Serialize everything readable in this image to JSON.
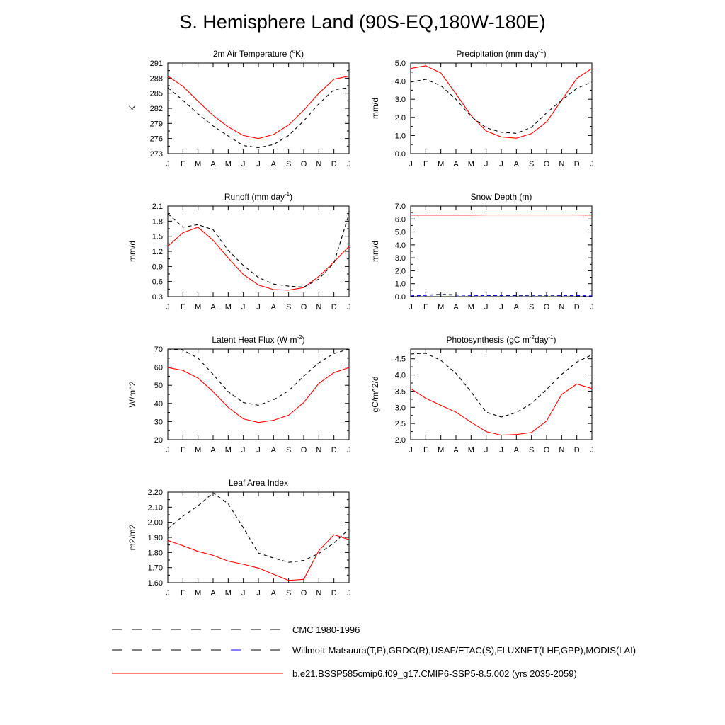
{
  "page": {
    "title": "S. Hemisphere Land (90S-EQ,180W-180E)"
  },
  "legend": [
    {
      "label": "CMC 1980-1996",
      "style": "dashed",
      "color": "#000000",
      "color2": "#000000"
    },
    {
      "label": "Willmott-Matsuura(T,P),GRDC(R),USAF/ETAC(S),FLUXNET(LHF,GPP),MODIS(LAI)",
      "style": "dashed",
      "color": "#000000",
      "color2": "#0000ff"
    },
    {
      "label": "b.e21.BSSP585cmip6.f09_g17.CMIP6-SSP5-8.5.002 (yrs 2035-2059)",
      "style": "solid",
      "color": "#ff0000"
    }
  ],
  "chart_data": [
    {
      "type": "line",
      "title": "2m Air Temperature (°K)",
      "title_parts": [
        "2m Air Temperature (",
        "o",
        "K)"
      ],
      "ylabel": "K",
      "x": [
        "J",
        "F",
        "M",
        "A",
        "M",
        "J",
        "J",
        "A",
        "S",
        "O",
        "N",
        "D",
        "J"
      ],
      "ylim": [
        273,
        291
      ],
      "yticks": [
        "273",
        "276",
        "279",
        "282",
        "285",
        "288",
        "291"
      ],
      "series": [
        {
          "color": "#ff0000",
          "dash": "solid",
          "values": [
            288.4,
            286.4,
            283.4,
            280.6,
            278.3,
            276.6,
            276.0,
            276.8,
            278.7,
            281.6,
            285.0,
            287.8,
            288.4
          ]
        },
        {
          "color": "#000000",
          "dash": "dashed",
          "values": [
            286.1,
            283.6,
            280.9,
            278.5,
            276.5,
            274.6,
            274.2,
            274.8,
            276.6,
            279.5,
            282.9,
            285.7,
            286.1
          ]
        }
      ]
    },
    {
      "type": "line",
      "title": "Precipitation (mm day-1)",
      "title_parts": [
        "Precipitation (mm day",
        "-1",
        ")"
      ],
      "ylabel": "mm/d",
      "x": [
        "J",
        "F",
        "M",
        "A",
        "M",
        "J",
        "J",
        "A",
        "S",
        "O",
        "N",
        "D",
        "J"
      ],
      "ylim": [
        0,
        5
      ],
      "yticks": [
        "0.0",
        "1.0",
        "2.0",
        "3.0",
        "4.0",
        "5.0"
      ],
      "series": [
        {
          "color": "#ff0000",
          "dash": "solid",
          "values": [
            4.7,
            4.85,
            4.45,
            3.3,
            2.1,
            1.25,
            0.92,
            0.85,
            1.1,
            1.75,
            2.95,
            4.15,
            4.7
          ]
        },
        {
          "color": "#000000",
          "dash": "dashed",
          "values": [
            3.95,
            4.1,
            3.75,
            3.0,
            2.05,
            1.42,
            1.18,
            1.12,
            1.45,
            2.25,
            2.95,
            3.6,
            3.95
          ]
        }
      ]
    },
    {
      "type": "line",
      "title": "Runoff (mm day-1)",
      "title_parts": [
        "Runoff (mm day",
        "-1",
        ")"
      ],
      "ylabel": "mm/d",
      "x": [
        "J",
        "F",
        "M",
        "A",
        "M",
        "J",
        "J",
        "A",
        "S",
        "O",
        "N",
        "D",
        "J"
      ],
      "ylim": [
        0.3,
        2.1
      ],
      "yticks": [
        "0.3",
        "0.6",
        "0.9",
        "1.2",
        "1.5",
        "1.8",
        "2.1"
      ],
      "series": [
        {
          "color": "#ff0000",
          "dash": "solid",
          "values": [
            1.3,
            1.57,
            1.68,
            1.42,
            1.07,
            0.74,
            0.53,
            0.44,
            0.43,
            0.48,
            0.7,
            0.99,
            1.3
          ]
        },
        {
          "color": "#000000",
          "dash": "dashed",
          "values": [
            1.95,
            1.68,
            1.73,
            1.63,
            1.22,
            0.92,
            0.68,
            0.55,
            0.51,
            0.49,
            0.65,
            0.97,
            1.95
          ]
        }
      ]
    },
    {
      "type": "line",
      "title": "Snow Depth (m)",
      "title_parts": [
        "Snow Depth (m)"
      ],
      "ylabel": "mm/d",
      "x": [
        "J",
        "F",
        "M",
        "A",
        "M",
        "J",
        "J",
        "A",
        "S",
        "O",
        "N",
        "D",
        "J"
      ],
      "ylim": [
        0,
        7
      ],
      "yticks": [
        "0.0",
        "1.0",
        "2.0",
        "3.0",
        "4.0",
        "5.0",
        "6.0",
        "7.0"
      ],
      "series": [
        {
          "color": "#ff0000",
          "dash": "solid",
          "values": [
            6.3,
            6.3,
            6.3,
            6.3,
            6.3,
            6.31,
            6.31,
            6.31,
            6.31,
            6.31,
            6.31,
            6.31,
            6.3
          ]
        },
        {
          "color": "#000000",
          "dash": "dashed",
          "values": [
            0.05,
            0.12,
            0.18,
            0.14,
            0.1,
            0.09,
            0.08,
            0.09,
            0.1,
            0.1,
            0.09,
            0.07,
            0.05
          ]
        },
        {
          "color": "#0000ff",
          "dash": "dashed",
          "values": [
            0.06,
            0.1,
            0.15,
            0.12,
            0.1,
            0.09,
            0.1,
            0.11,
            0.12,
            0.12,
            0.1,
            0.08,
            0.06
          ]
        }
      ]
    },
    {
      "type": "line",
      "title": "Latent Heat Flux (W m-2)",
      "title_parts": [
        "Latent Heat Flux (W m",
        "-2",
        ")"
      ],
      "ylabel": "W/m^2",
      "x": [
        "J",
        "F",
        "M",
        "A",
        "M",
        "J",
        "J",
        "A",
        "S",
        "O",
        "N",
        "D",
        "J"
      ],
      "ylim": [
        20,
        70
      ],
      "yticks": [
        "20",
        "30",
        "40",
        "50",
        "60",
        "70"
      ],
      "series": [
        {
          "color": "#ff0000",
          "dash": "solid",
          "values": [
            59.8,
            58.2,
            54.0,
            46.5,
            37.8,
            31.5,
            29.5,
            30.7,
            33.5,
            40.5,
            51.0,
            57.0,
            59.8
          ]
        },
        {
          "color": "#000000",
          "dash": "dashed",
          "values": [
            70.0,
            69.5,
            65.0,
            56.0,
            46.5,
            40.5,
            39.0,
            42.0,
            47.0,
            55.0,
            62.5,
            67.5,
            70.0
          ]
        }
      ]
    },
    {
      "type": "line",
      "title": "Photosynthesis (gC m-2day-1)",
      "title_parts": [
        "Photosynthesis (gC m",
        "-2",
        "day",
        "-1",
        ")"
      ],
      "ylabel": "gC/m^2/d",
      "x": [
        "J",
        "F",
        "M",
        "A",
        "M",
        "J",
        "J",
        "A",
        "S",
        "O",
        "N",
        "D",
        "J"
      ],
      "ylim": [
        2.0,
        4.8
      ],
      "yticks": [
        "2.0",
        "2.5",
        "3.0",
        "3.5",
        "4.0",
        "4.5"
      ],
      "series": [
        {
          "color": "#ff0000",
          "dash": "solid",
          "values": [
            3.58,
            3.28,
            3.06,
            2.85,
            2.54,
            2.25,
            2.14,
            2.16,
            2.22,
            2.58,
            3.4,
            3.72,
            3.58
          ]
        },
        {
          "color": "#000000",
          "dash": "dashed",
          "values": [
            4.65,
            4.67,
            4.45,
            4.05,
            3.48,
            2.85,
            2.7,
            2.84,
            3.12,
            3.55,
            4.02,
            4.4,
            4.62
          ]
        }
      ]
    },
    {
      "type": "line",
      "title": "Leaf Area Index",
      "title_parts": [
        "Leaf Area Index"
      ],
      "ylabel": "m2/m2",
      "x": [
        "J",
        "F",
        "M",
        "A",
        "M",
        "J",
        "J",
        "A",
        "S",
        "O",
        "N",
        "D",
        "J"
      ],
      "ylim": [
        1.6,
        2.2
      ],
      "yticks": [
        "1.60",
        "1.70",
        "1.80",
        "1.90",
        "2.00",
        "2.10",
        "2.20"
      ],
      "series": [
        {
          "color": "#ff0000",
          "dash": "solid",
          "values": [
            1.88,
            1.845,
            1.807,
            1.781,
            1.743,
            1.722,
            1.697,
            1.656,
            1.615,
            1.622,
            1.812,
            1.918,
            1.885
          ]
        },
        {
          "color": "#000000",
          "dash": "dashed",
          "values": [
            1.957,
            2.04,
            2.109,
            2.195,
            2.123,
            1.963,
            1.796,
            1.763,
            1.735,
            1.747,
            1.793,
            1.863,
            1.955
          ]
        }
      ]
    }
  ]
}
